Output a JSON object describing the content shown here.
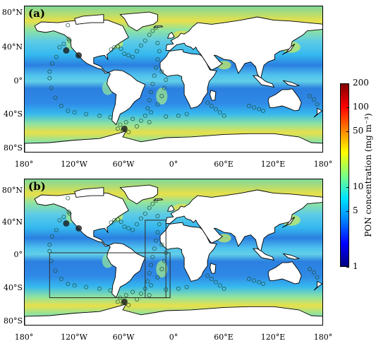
{
  "chart_data": [
    {
      "type": "heatmap",
      "panel_label": "(a)",
      "title": "",
      "xlim": [
        -180,
        180
      ],
      "ylim": [
        -90,
        90
      ],
      "y_ticks": [
        "80°N",
        "40°N",
        "0°",
        "40°S",
        "80°S"
      ],
      "y_values": [
        80,
        40,
        0,
        -40,
        -80
      ],
      "sample_points": [
        {
          "lon": -128,
          "lat": 67
        },
        {
          "lon": -127,
          "lat": 50
        },
        {
          "lon": -126,
          "lat": 48
        },
        {
          "lon": -133,
          "lat": 44
        },
        {
          "lon": -138,
          "lat": 40
        },
        {
          "lon": -142,
          "lat": 28
        },
        {
          "lon": -147,
          "lat": 20
        },
        {
          "lon": -150,
          "lat": 10
        },
        {
          "lon": -150,
          "lat": 2
        },
        {
          "lon": -148,
          "lat": -10
        },
        {
          "lon": -143,
          "lat": -22
        },
        {
          "lon": -136,
          "lat": -32
        },
        {
          "lon": -128,
          "lat": -38
        },
        {
          "lon": -120,
          "lat": -40
        },
        {
          "lon": -106,
          "lat": -42
        },
        {
          "lon": -90,
          "lat": -44
        },
        {
          "lon": -77,
          "lat": -46
        },
        {
          "lon": -76,
          "lat": 37
        },
        {
          "lon": -72,
          "lat": 40
        },
        {
          "lon": -68,
          "lat": 41
        },
        {
          "lon": -64,
          "lat": 38
        },
        {
          "lon": -60,
          "lat": 32
        },
        {
          "lon": -55,
          "lat": 30
        },
        {
          "lon": -50,
          "lat": 28
        },
        {
          "lon": -45,
          "lat": 35
        },
        {
          "lon": -40,
          "lat": 42
        },
        {
          "lon": -35,
          "lat": 48
        },
        {
          "lon": -30,
          "lat": 55
        },
        {
          "lon": -26,
          "lat": 60
        },
        {
          "lon": -22,
          "lat": 64
        },
        {
          "lon": -20,
          "lat": 45
        },
        {
          "lon": -18,
          "lat": 35
        },
        {
          "lon": -20,
          "lat": 25
        },
        {
          "lon": -22,
          "lat": 15
        },
        {
          "lon": -24,
          "lat": 5
        },
        {
          "lon": -26,
          "lat": -5
        },
        {
          "lon": -28,
          "lat": -15
        },
        {
          "lon": -30,
          "lat": -25
        },
        {
          "lon": -32,
          "lat": -35
        },
        {
          "lon": -35,
          "lat": -44
        },
        {
          "lon": -40,
          "lat": -50
        },
        {
          "lon": -28,
          "lat": -40
        },
        {
          "lon": -20,
          "lat": -30
        },
        {
          "lon": -15,
          "lat": -20
        },
        {
          "lon": -12,
          "lat": -10
        },
        {
          "lon": -10,
          "lat": 0
        },
        {
          "lon": -15,
          "lat": 10
        },
        {
          "lon": -50,
          "lat": -48
        },
        {
          "lon": -58,
          "lat": -52
        },
        {
          "lon": -65,
          "lat": -55
        },
        {
          "lon": -68,
          "lat": -60
        },
        {
          "lon": -62,
          "lat": -62
        },
        {
          "lon": -55,
          "lat": -64
        },
        {
          "lon": -45,
          "lat": -57
        },
        {
          "lon": -30,
          "lat": -52
        },
        {
          "lon": -10,
          "lat": -45
        },
        {
          "lon": 5,
          "lat": -44
        },
        {
          "lon": 15,
          "lat": -42
        },
        {
          "lon": 40,
          "lat": -28
        },
        {
          "lon": 45,
          "lat": -32
        },
        {
          "lon": 50,
          "lat": -36
        },
        {
          "lon": 55,
          "lat": -40
        },
        {
          "lon": 60,
          "lat": -44
        },
        {
          "lon": 90,
          "lat": -32
        },
        {
          "lon": 96,
          "lat": -34
        },
        {
          "lon": 102,
          "lat": -36
        },
        {
          "lon": 107,
          "lat": -38
        },
        {
          "lon": 163,
          "lat": -20
        },
        {
          "lon": 168,
          "lat": -24
        },
        {
          "lon": 172,
          "lat": -30
        }
      ]
    },
    {
      "type": "heatmap",
      "panel_label": "(b)",
      "title": "",
      "xlim": [
        -180,
        180
      ],
      "ylim": [
        -90,
        90
      ],
      "y_ticks": [
        "80°N",
        "40°N",
        "0°",
        "40°S",
        "80°S"
      ],
      "y_values": [
        80,
        40,
        0,
        -40,
        -80
      ],
      "x_ticks": [
        "180°",
        "120°W",
        "60°W",
        "0°",
        "60°E",
        "120°E",
        "180°"
      ],
      "x_values": [
        -180,
        -120,
        -60,
        0,
        60,
        120,
        180
      ],
      "regions": [
        {
          "lon_min": -150,
          "lon_max": -5,
          "lat_min": -55,
          "lat_max": 0
        },
        {
          "lon_min": -35,
          "lon_max": -10,
          "lat_min": -55,
          "lat_max": 40
        }
      ],
      "sample_points": [
        {
          "lon": -128,
          "lat": 67
        },
        {
          "lon": -127,
          "lat": 50
        },
        {
          "lon": -126,
          "lat": 48
        },
        {
          "lon": -133,
          "lat": 44
        },
        {
          "lon": -138,
          "lat": 40
        },
        {
          "lon": -142,
          "lat": 28
        },
        {
          "lon": -147,
          "lat": 20
        },
        {
          "lon": -150,
          "lat": 10
        },
        {
          "lon": -150,
          "lat": 2
        },
        {
          "lon": -148,
          "lat": -10
        },
        {
          "lon": -143,
          "lat": -22
        },
        {
          "lon": -136,
          "lat": -32
        },
        {
          "lon": -128,
          "lat": -38
        },
        {
          "lon": -120,
          "lat": -40
        },
        {
          "lon": -106,
          "lat": -42
        },
        {
          "lon": -90,
          "lat": -44
        },
        {
          "lon": -77,
          "lat": -46
        },
        {
          "lon": -76,
          "lat": 37
        },
        {
          "lon": -72,
          "lat": 40
        },
        {
          "lon": -68,
          "lat": 41
        },
        {
          "lon": -64,
          "lat": 38
        },
        {
          "lon": -60,
          "lat": 32
        },
        {
          "lon": -55,
          "lat": 30
        },
        {
          "lon": -50,
          "lat": 28
        },
        {
          "lon": -45,
          "lat": 35
        },
        {
          "lon": -40,
          "lat": 42
        },
        {
          "lon": -35,
          "lat": 48
        },
        {
          "lon": -30,
          "lat": 55
        },
        {
          "lon": -26,
          "lat": 60
        },
        {
          "lon": -22,
          "lat": 64
        },
        {
          "lon": -20,
          "lat": 45
        },
        {
          "lon": -18,
          "lat": 35
        },
        {
          "lon": -20,
          "lat": 25
        },
        {
          "lon": -22,
          "lat": 15
        },
        {
          "lon": -24,
          "lat": 5
        },
        {
          "lon": -26,
          "lat": -5
        },
        {
          "lon": -28,
          "lat": -15
        },
        {
          "lon": -30,
          "lat": -25
        },
        {
          "lon": -32,
          "lat": -35
        },
        {
          "lon": -35,
          "lat": -44
        },
        {
          "lon": -40,
          "lat": -50
        },
        {
          "lon": -28,
          "lat": -40
        },
        {
          "lon": -20,
          "lat": -30
        },
        {
          "lon": -15,
          "lat": -20
        },
        {
          "lon": -12,
          "lat": -10
        },
        {
          "lon": -10,
          "lat": 0
        },
        {
          "lon": -15,
          "lat": 10
        },
        {
          "lon": -50,
          "lat": -48
        },
        {
          "lon": -58,
          "lat": -52
        },
        {
          "lon": -65,
          "lat": -55
        },
        {
          "lon": -68,
          "lat": -60
        },
        {
          "lon": -62,
          "lat": -62
        },
        {
          "lon": -55,
          "lat": -64
        },
        {
          "lon": -45,
          "lat": -57
        },
        {
          "lon": -30,
          "lat": -52
        },
        {
          "lon": -10,
          "lat": -45
        },
        {
          "lon": 5,
          "lat": -44
        },
        {
          "lon": 15,
          "lat": -42
        },
        {
          "lon": 40,
          "lat": -28
        },
        {
          "lon": 45,
          "lat": -32
        },
        {
          "lon": 50,
          "lat": -36
        },
        {
          "lon": 55,
          "lat": -40
        },
        {
          "lon": 60,
          "lat": -44
        },
        {
          "lon": 90,
          "lat": -32
        },
        {
          "lon": 96,
          "lat": -34
        },
        {
          "lon": 102,
          "lat": -36
        },
        {
          "lon": 107,
          "lat": -38
        },
        {
          "lon": 163,
          "lat": -20
        },
        {
          "lon": 168,
          "lat": -24
        },
        {
          "lon": 172,
          "lat": -30
        }
      ]
    }
  ],
  "colorbar": {
    "title": "PON concentration (mg m⁻³)",
    "scale": "log",
    "range": [
      1,
      200
    ],
    "tick_labels": [
      "200",
      "100",
      "50",
      "10",
      "5",
      "1"
    ],
    "tick_values": [
      200,
      100,
      50,
      10,
      5,
      1
    ],
    "colors": [
      "#00007f",
      "#0000ff",
      "#0080ff",
      "#00e5ff",
      "#7fff7f",
      "#ffff00",
      "#ff8000",
      "#ff0000",
      "#7f0000"
    ]
  },
  "colors": {
    "ocean_oligotrophic": "#2b7fe0",
    "ocean_mid": "#35b8ef",
    "ocean_productive": "#8fe3a0",
    "ocean_high": "#e8e04a",
    "land": "#ffffff",
    "marker": "#1f4f3a"
  }
}
